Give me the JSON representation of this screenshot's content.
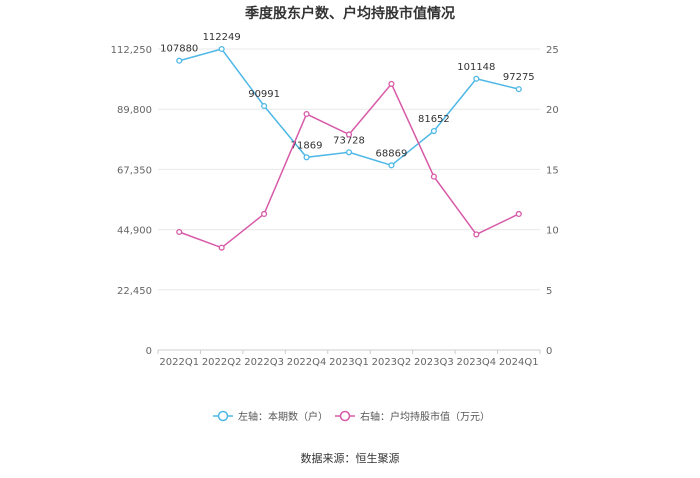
{
  "chart_data": {
    "type": "line",
    "title": "季度股东户数、户均持股市值情况",
    "source": "数据来源：恒生聚源",
    "categories": [
      "2022Q1",
      "2022Q2",
      "2022Q3",
      "2022Q4",
      "2023Q1",
      "2023Q2",
      "2023Q3",
      "2023Q4",
      "2024Q1"
    ],
    "left_axis": {
      "ticks": [
        "112,250",
        "89,800",
        "67,350",
        "44,900",
        "22,450",
        "0"
      ],
      "range": [
        0,
        112250
      ]
    },
    "right_axis": {
      "ticks": [
        "25",
        "20",
        "15",
        "10",
        "5",
        "0"
      ],
      "range": [
        0,
        25
      ]
    },
    "series": [
      {
        "name": "左轴：本期数（户）",
        "axis": "left",
        "color": "#4fb8e6",
        "values": [
          107880,
          112249,
          90991,
          71869,
          73728,
          68869,
          81652,
          101148,
          97275
        ],
        "labels": [
          "107880",
          "112249",
          "90991",
          "71869",
          "73728",
          "68869",
          "81652",
          "101148",
          "97275"
        ]
      },
      {
        "name": "右轴：户均持股市值（万元）",
        "axis": "right",
        "color": "#d75aa8",
        "values": [
          9.8,
          8.5,
          11.3,
          19.6,
          17.9,
          22.1,
          14.4,
          9.6,
          11.3
        ]
      }
    ],
    "grid": true,
    "legend_position": "bottom"
  }
}
